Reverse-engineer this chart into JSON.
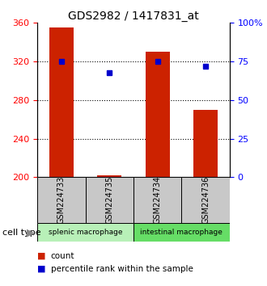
{
  "title": "GDS2982 / 1417831_at",
  "samples": [
    "GSM224733",
    "GSM224735",
    "GSM224734",
    "GSM224736"
  ],
  "bar_values": [
    355,
    202,
    330,
    270
  ],
  "percentile_values": [
    320,
    308,
    320,
    315
  ],
  "ylim_left": [
    200,
    360
  ],
  "ylim_right": [
    0,
    100
  ],
  "yticks_left": [
    200,
    240,
    280,
    320,
    360
  ],
  "yticks_right": [
    0,
    25,
    50,
    75,
    100
  ],
  "ytick_labels_right": [
    "0",
    "25",
    "50",
    "75",
    "100%"
  ],
  "hlines": [
    240,
    280,
    320
  ],
  "bar_color": "#cc2200",
  "dot_color": "#0000cc",
  "bar_width": 0.5,
  "groups": [
    {
      "label": "splenic macrophage",
      "indices": [
        0,
        1
      ],
      "color": "#b8f0b8"
    },
    {
      "label": "intestinal macrophage",
      "indices": [
        2,
        3
      ],
      "color": "#66dd66"
    }
  ],
  "sample_row_color": "#c8c8c8",
  "cell_type_label": "cell type",
  "legend_count_label": "count",
  "legend_percentile_label": "percentile rank within the sample",
  "background_color": "#ffffff"
}
